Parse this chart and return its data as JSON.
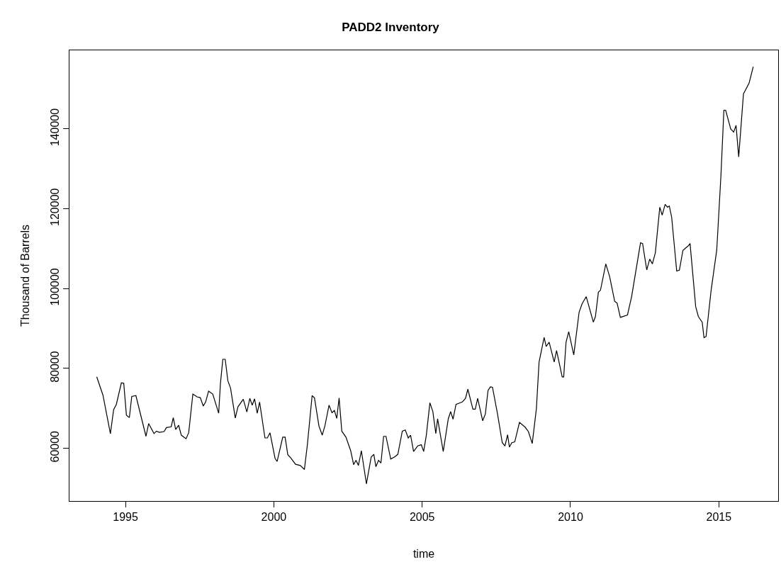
{
  "chart_data": {
    "type": "line",
    "title": "PADD2 Inventory",
    "xlabel": "time",
    "ylabel": "Thousand of Barrels",
    "x": [
      1994.03,
      1994.24,
      1994.49,
      1994.6,
      1994.69,
      1994.86,
      1994.94,
      1995.03,
      1995.13,
      1995.21,
      1995.35,
      1995.69,
      1995.78,
      1995.96,
      1996.04,
      1996.14,
      1996.3,
      1996.38,
      1996.54,
      1996.61,
      1996.69,
      1996.79,
      1996.88,
      1997.04,
      1997.13,
      1997.27,
      1997.41,
      1997.52,
      1997.62,
      1997.7,
      1997.8,
      1997.94,
      1998.14,
      1998.2,
      1998.28,
      1998.36,
      1998.45,
      1998.54,
      1998.7,
      1998.79,
      1998.97,
      1999.09,
      1999.19,
      1999.27,
      1999.35,
      1999.44,
      1999.52,
      1999.7,
      1999.78,
      1999.87,
      2000.04,
      2000.11,
      2000.3,
      2000.38,
      2000.47,
      2000.57,
      2000.73,
      2000.89,
      2001.03,
      2001.13,
      2001.29,
      2001.37,
      2001.52,
      2001.63,
      2001.72,
      2001.86,
      2001.96,
      2002.04,
      2002.12,
      2002.2,
      2002.29,
      2002.43,
      2002.59,
      2002.69,
      2002.77,
      2002.85,
      2002.95,
      2003.12,
      2003.28,
      2003.37,
      2003.44,
      2003.53,
      2003.61,
      2003.7,
      2003.78,
      2003.94,
      2004.08,
      2004.18,
      2004.33,
      2004.43,
      2004.53,
      2004.61,
      2004.71,
      2004.85,
      2004.97,
      2005.05,
      2005.14,
      2005.26,
      2005.36,
      2005.46,
      2005.52,
      2005.71,
      2005.88,
      2005.96,
      2006.04,
      2006.14,
      2006.24,
      2006.35,
      2006.46,
      2006.54,
      2006.71,
      2006.79,
      2006.87,
      2007.04,
      2007.13,
      2007.22,
      2007.3,
      2007.37,
      2007.54,
      2007.7,
      2007.79,
      2007.88,
      2007.94,
      2008.02,
      2008.12,
      2008.28,
      2008.47,
      2008.58,
      2008.71,
      2008.85,
      2008.94,
      2009.11,
      2009.18,
      2009.28,
      2009.45,
      2009.53,
      2009.72,
      2009.77,
      2009.85,
      2009.94,
      2010.11,
      2010.29,
      2010.39,
      2010.53,
      2010.77,
      2010.84,
      2010.94,
      2011.01,
      2011.19,
      2011.32,
      2011.49,
      2011.57,
      2011.68,
      2011.92,
      2012.06,
      2012.36,
      2012.43,
      2012.57,
      2012.67,
      2012.76,
      2012.86,
      2013.01,
      2013.09,
      2013.19,
      2013.27,
      2013.33,
      2013.41,
      2013.58,
      2013.67,
      2013.79,
      2013.98,
      2014.03,
      2014.22,
      2014.31,
      2014.44,
      2014.5,
      2014.57,
      2014.74,
      2014.93,
      2015.07,
      2015.17,
      2015.23,
      2015.4,
      2015.5,
      2015.58,
      2015.67,
      2015.83,
      2016.02,
      2016.16
    ],
    "series": [
      {
        "color": "#000000",
        "values": [
          77900,
          73300,
          63700,
          69700,
          71000,
          76400,
          76300,
          68300,
          67700,
          73000,
          73200,
          63000,
          66200,
          63700,
          64300,
          64000,
          64200,
          65200,
          65400,
          67700,
          64700,
          65800,
          63300,
          62400,
          63900,
          73600,
          72900,
          72700,
          70600,
          71600,
          74300,
          73600,
          68800,
          76300,
          82300,
          82300,
          76900,
          75100,
          67600,
          70400,
          72300,
          69100,
          72500,
          70800,
          72400,
          68800,
          71600,
          62600,
          62600,
          63900,
          57500,
          56700,
          62800,
          62800,
          58400,
          57600,
          56000,
          55700,
          54700,
          60900,
          73200,
          72600,
          65600,
          63300,
          65600,
          70800,
          68900,
          69500,
          67500,
          72600,
          64300,
          62800,
          59400,
          55900,
          57000,
          55700,
          59400,
          51100,
          57800,
          58500,
          55400,
          57000,
          56300,
          63000,
          63000,
          57300,
          57900,
          58500,
          64300,
          64600,
          62600,
          63300,
          59200,
          60600,
          60900,
          59200,
          63300,
          71400,
          69200,
          63700,
          67400,
          59200,
          67400,
          69200,
          67300,
          71000,
          71300,
          71600,
          72500,
          74800,
          69800,
          69800,
          72500,
          66900,
          68600,
          74500,
          75400,
          75300,
          68600,
          61400,
          60600,
          63400,
          60300,
          61400,
          61600,
          66500,
          65300,
          64200,
          61200,
          69900,
          81600,
          87800,
          85500,
          86600,
          81600,
          84500,
          77900,
          77900,
          86600,
          89200,
          83400,
          94100,
          96200,
          98000,
          91600,
          93000,
          99100,
          99600,
          106200,
          103000,
          96800,
          96400,
          92800,
          93400,
          98000,
          111500,
          111300,
          104700,
          107400,
          106200,
          109000,
          120400,
          118400,
          121100,
          120400,
          120700,
          117900,
          104400,
          104600,
          109600,
          110800,
          111300,
          95500,
          93000,
          91600,
          87700,
          88000,
          99600,
          109700,
          128200,
          144700,
          144700,
          140000,
          139200,
          140900,
          133000,
          148800,
          151500,
          155600
        ]
      }
    ],
    "xlim": [
      1993.11,
      2017.0
    ],
    "xticks": [
      1995,
      2000,
      2005,
      2010,
      2015
    ],
    "ylim": [
      46800,
      159700
    ],
    "yticks": [
      60000,
      80000,
      100000,
      120000,
      140000
    ],
    "grid": false,
    "line_style": "solid"
  }
}
